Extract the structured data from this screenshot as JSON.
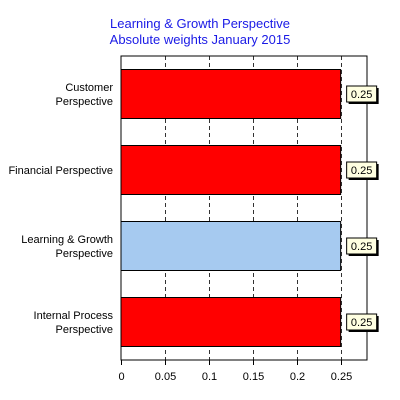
{
  "chart_data": {
    "type": "bar",
    "orientation": "horizontal",
    "title": [
      "Learning & Growth Perspective",
      "Absolute weights January 2015"
    ],
    "categories": [
      [
        "Customer",
        "Perspective"
      ],
      [
        "Financial Perspective"
      ],
      [
        "Learning & Growth",
        "Perspective"
      ],
      [
        "Internal Process",
        "Perspective"
      ]
    ],
    "values": [
      0.25,
      0.25,
      0.25,
      0.25
    ],
    "data_labels": [
      "0.25",
      "0.25",
      "0.25",
      "0.25"
    ],
    "bar_colors": [
      "#ff0000",
      "#ff0000",
      "#a6caf0",
      "#ff0000"
    ],
    "highlighted_category": "Learning & Growth Perspective",
    "xlim": [
      0,
      0.28
    ],
    "x_ticks": [
      0,
      0.05,
      0.1,
      0.15,
      0.2,
      0.25
    ],
    "x_tick_labels": [
      "0",
      "0.05",
      "0.1",
      "0.15",
      "0.2",
      "0.25"
    ],
    "grid": "vertical-dashed",
    "label_box_color": "#ffffe1",
    "title_color": "#1a1ae6"
  }
}
